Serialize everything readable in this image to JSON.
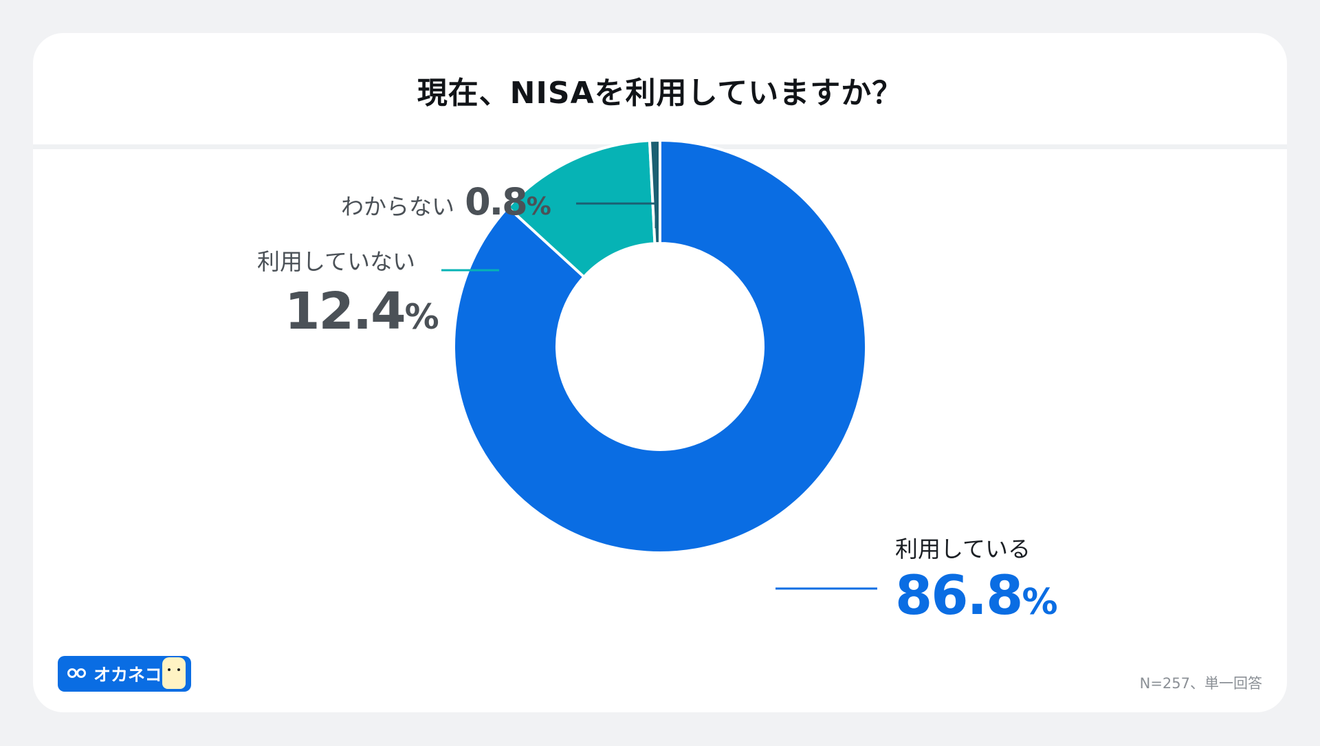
{
  "title": "現在、NISAを利用していますか？",
  "note": "N=257、単一回答",
  "logo": {
    "text": "オカネコ"
  },
  "colors": {
    "using": "#0a6de3",
    "not_using": "#06b3b5",
    "unknown": "#1c5f72",
    "label_dark": "#4b5157"
  },
  "chart_data": {
    "type": "pie",
    "title": "現在、NISAを利用していますか？",
    "donut": true,
    "slices": [
      {
        "label": "利用している",
        "value": 86.8,
        "display": "86.8"
      },
      {
        "label": "利用していない",
        "value": 12.4,
        "display": "12.4"
      },
      {
        "label": "わからない",
        "value": 0.8,
        "display": "0.8"
      }
    ],
    "unit": "%"
  }
}
